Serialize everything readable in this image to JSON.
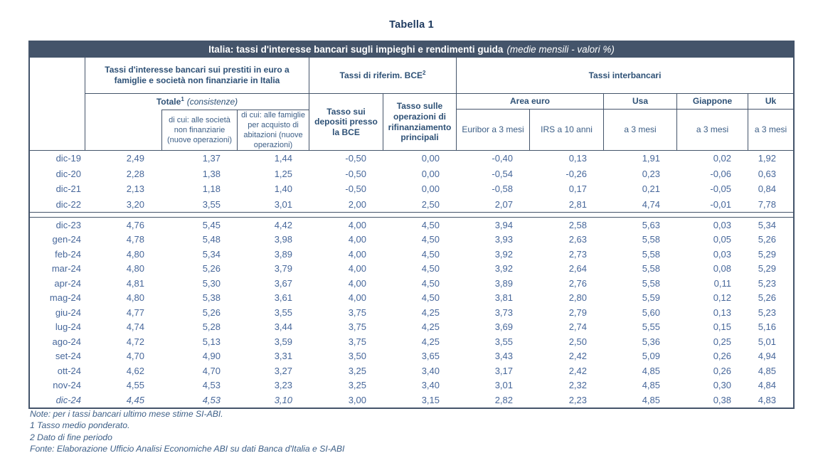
{
  "title": "Tabella 1",
  "banner": {
    "bold": "Italia: tassi d'interesse bancari sugli impieghi e rendimenti guida",
    "italic": "(medie mensili - valori %)"
  },
  "header": {
    "group_loans": "Tassi d'interesse bancari sui prestiti in euro a famiglie e società non finanziarie in Italia",
    "group_bce": "Tassi di riferim. BCE",
    "group_bce_sup": "2",
    "group_interbank": "Tassi interbancari",
    "totale_bold": "Totale",
    "totale_sup": "1",
    "totale_italic": "(consistenze)",
    "di_cui_societa": "di cui: alle società non finanziarie (nuove operazioni)",
    "di_cui_famiglie": "di cui: alle famiglie per acquisto di abitazioni (nuove operazioni)",
    "bce_depositi": "Tasso sui depositi presso la BCE",
    "bce_rifinanziamento": "Tasso sulle operazioni di rifinanziamento principali",
    "area_euro": "Area euro",
    "euribor": "Euribor a 3 mesi",
    "irs": "IRS a 10 anni",
    "usa": "Usa",
    "giappone": "Giappone",
    "uk": "Uk",
    "a3mesi": "a 3 mesi"
  },
  "table": {
    "block1": [
      {
        "cells": [
          "dic-19",
          "2,49",
          "1,37",
          "1,44",
          "-0,50",
          "0,00",
          "-0,40",
          "0,13",
          "1,91",
          "0,02",
          "1,92"
        ]
      },
      {
        "cells": [
          "dic-20",
          "2,28",
          "1,38",
          "1,25",
          "-0,50",
          "0,00",
          "-0,54",
          "-0,26",
          "0,23",
          "-0,06",
          "0,63"
        ]
      },
      {
        "cells": [
          "dic-21",
          "2,13",
          "1,18",
          "1,40",
          "-0,50",
          "0,00",
          "-0,58",
          "0,17",
          "0,21",
          "-0,05",
          "0,84"
        ]
      },
      {
        "cells": [
          "dic-22",
          "3,20",
          "3,55",
          "3,01",
          "2,00",
          "2,50",
          "2,07",
          "2,81",
          "4,74",
          "-0,01",
          "7,78"
        ]
      }
    ],
    "block2": [
      {
        "cells": [
          "dic-23",
          "4,76",
          "5,45",
          "4,42",
          "4,00",
          "4,50",
          "3,94",
          "2,58",
          "5,63",
          "0,03",
          "5,34"
        ]
      },
      {
        "cells": [
          "gen-24",
          "4,78",
          "5,48",
          "3,98",
          "4,00",
          "4,50",
          "3,93",
          "2,63",
          "5,58",
          "0,05",
          "5,26"
        ]
      },
      {
        "cells": [
          "feb-24",
          "4,80",
          "5,34",
          "3,89",
          "4,00",
          "4,50",
          "3,92",
          "2,73",
          "5,58",
          "0,03",
          "5,29"
        ]
      },
      {
        "cells": [
          "mar-24",
          "4,80",
          "5,26",
          "3,79",
          "4,00",
          "4,50",
          "3,92",
          "2,64",
          "5,58",
          "0,08",
          "5,29"
        ]
      },
      {
        "cells": [
          "apr-24",
          "4,81",
          "5,30",
          "3,67",
          "4,00",
          "4,50",
          "3,89",
          "2,76",
          "5,58",
          "0,11",
          "5,23"
        ]
      },
      {
        "cells": [
          "mag-24",
          "4,80",
          "5,38",
          "3,61",
          "4,00",
          "4,50",
          "3,81",
          "2,80",
          "5,59",
          "0,12",
          "5,26"
        ]
      },
      {
        "cells": [
          "giu-24",
          "4,77",
          "5,26",
          "3,55",
          "3,75",
          "4,25",
          "3,73",
          "2,79",
          "5,60",
          "0,13",
          "5,23"
        ]
      },
      {
        "cells": [
          "lug-24",
          "4,74",
          "5,28",
          "3,44",
          "3,75",
          "4,25",
          "3,69",
          "2,74",
          "5,55",
          "0,15",
          "5,16"
        ]
      },
      {
        "cells": [
          "ago-24",
          "4,72",
          "5,13",
          "3,59",
          "3,75",
          "4,25",
          "3,55",
          "2,50",
          "5,36",
          "0,25",
          "5,01"
        ]
      },
      {
        "cells": [
          "set-24",
          "4,70",
          "4,90",
          "3,31",
          "3,50",
          "3,65",
          "3,43",
          "2,42",
          "5,09",
          "0,26",
          "4,94"
        ]
      },
      {
        "cells": [
          "ott-24",
          "4,62",
          "4,70",
          "3,27",
          "3,25",
          "3,40",
          "3,17",
          "2,42",
          "4,85",
          "0,26",
          "4,85"
        ]
      },
      {
        "cells": [
          "nov-24",
          "4,55",
          "4,53",
          "3,23",
          "3,25",
          "3,40",
          "3,01",
          "2,32",
          "4,85",
          "0,30",
          "4,84"
        ]
      },
      {
        "cells": [
          "dic-24",
          "4,45",
          "4,53",
          "3,10",
          "3,00",
          "3,15",
          "2,82",
          "2,23",
          "4,85",
          "0,38",
          "4,83"
        ],
        "italic": [
          0,
          1,
          2,
          3
        ]
      }
    ]
  },
  "notes": [
    "Note: per i tassi bancari ultimo mese stime SI-ABI.",
    "1 Tasso medio ponderato.",
    "2 Dato di fine periodo",
    "Fonte: Elaborazione Ufficio Analisi Economiche ABI su dati Banca d'Italia e SI-ABI"
  ],
  "colors": {
    "banner_bg": "#44546A",
    "border": "#44546A",
    "title_text": "#1E3A5F",
    "header_text": "#2E5176",
    "data_text": "#47679A",
    "notes_text": "#3C5E86"
  }
}
